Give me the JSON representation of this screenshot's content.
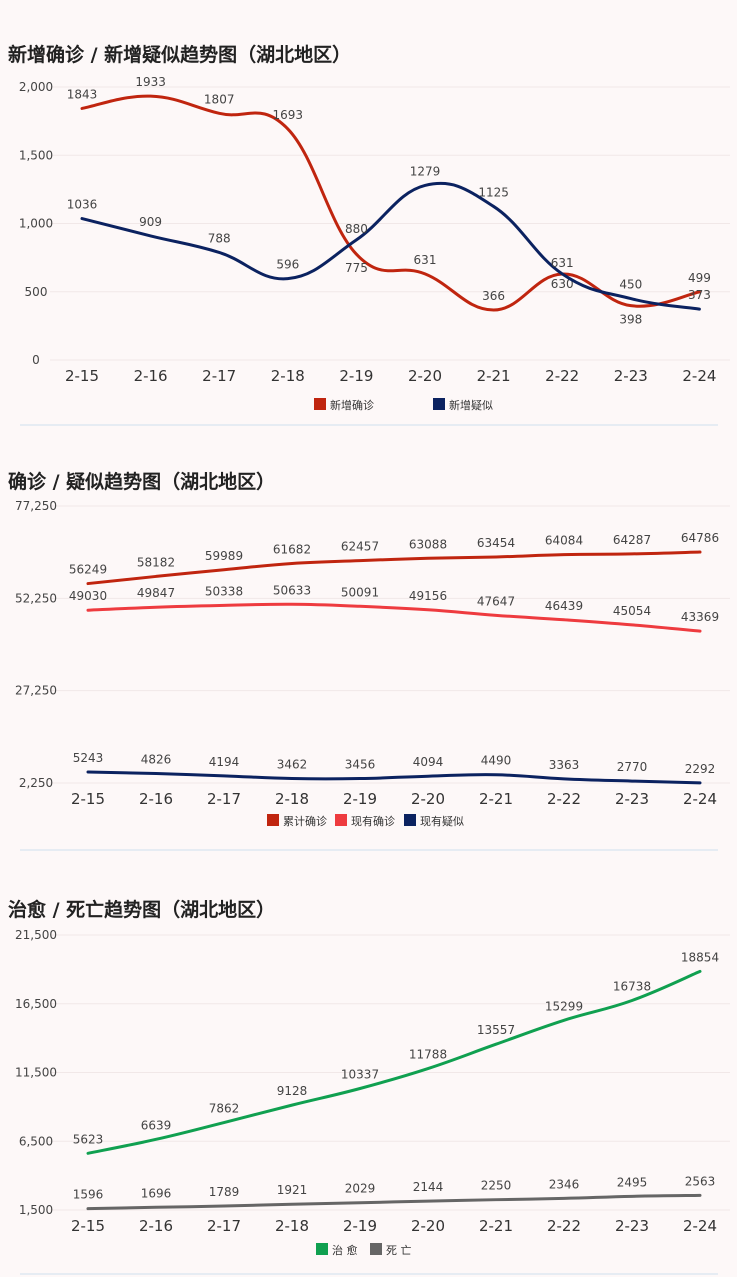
{
  "charts": [
    {
      "title": "新增确诊 / 新增疑似趋势图（湖北地区）"
    },
    {
      "title": "确诊 / 疑似趋势图（湖北地区）"
    },
    {
      "title": "治愈 / 死亡趋势图（湖北地区）"
    }
  ],
  "chart_data": [
    {
      "type": "line",
      "title": "新增确诊 / 新增疑似趋势图（湖北地区）",
      "categories": [
        "2-15",
        "2-16",
        "2-17",
        "2-18",
        "2-19",
        "2-20",
        "2-21",
        "2-22",
        "2-23",
        "2-24"
      ],
      "ylim": [
        0,
        2000
      ],
      "yticks": [
        0,
        500,
        1000,
        1500,
        2000
      ],
      "yticklabels": [
        "0",
        "500",
        "1,000",
        "1,500",
        "2,000"
      ],
      "smooth": true,
      "legend_position": "bottom",
      "series": [
        {
          "name": "新增确诊",
          "color": "#c0250f",
          "values": [
            1843,
            1933,
            1807,
            1693,
            775,
            631,
            366,
            630,
            398,
            499
          ]
        },
        {
          "name": "新增疑似",
          "color": "#0b2260",
          "values": [
            1036,
            909,
            788,
            596,
            880,
            1279,
            1125,
            631,
            450,
            373
          ]
        }
      ]
    },
    {
      "type": "line",
      "title": "确诊 / 疑似趋势图（湖北地区）",
      "categories": [
        "2-15",
        "2-16",
        "2-17",
        "2-18",
        "2-19",
        "2-20",
        "2-21",
        "2-22",
        "2-23",
        "2-24"
      ],
      "ylim": [
        2250,
        77250
      ],
      "yticks": [
        2250,
        27250,
        52250,
        77250
      ],
      "yticklabels": [
        "2,250",
        "27,250",
        "52,250",
        "77,250"
      ],
      "smooth": true,
      "legend_position": "bottom",
      "series": [
        {
          "name": "累计确诊",
          "color": "#c0250f",
          "values": [
            56249,
            58182,
            59989,
            61682,
            62457,
            63088,
            63454,
            64084,
            64287,
            64786
          ]
        },
        {
          "name": "现有确诊",
          "color": "#ee3b3f",
          "values": [
            49030,
            49847,
            50338,
            50633,
            50091,
            49156,
            47647,
            46439,
            45054,
            43369
          ]
        },
        {
          "name": "现有疑似",
          "color": "#0b2260",
          "values": [
            5243,
            4826,
            4194,
            3462,
            3456,
            4094,
            4490,
            3363,
            2770,
            2292
          ]
        }
      ]
    },
    {
      "type": "line",
      "title": "治愈 / 死亡趋势图（湖北地区）",
      "categories": [
        "2-15",
        "2-16",
        "2-17",
        "2-18",
        "2-19",
        "2-20",
        "2-21",
        "2-22",
        "2-23",
        "2-24"
      ],
      "ylim": [
        1500,
        21500
      ],
      "yticks": [
        1500,
        6500,
        11500,
        16500,
        21500
      ],
      "yticklabels": [
        "1,500",
        "6,500",
        "11,500",
        "16,500",
        "21,500"
      ],
      "smooth": true,
      "legend_position": "bottom",
      "series": [
        {
          "name": "治 愈",
          "color": "#10a050",
          "values": [
            5623,
            6639,
            7862,
            9128,
            10337,
            11788,
            13557,
            15299,
            16738,
            18854
          ]
        },
        {
          "name": "死 亡",
          "color": "#666666",
          "values": [
            1596,
            1696,
            1789,
            1921,
            2029,
            2144,
            2250,
            2346,
            2495,
            2563
          ]
        }
      ]
    }
  ]
}
